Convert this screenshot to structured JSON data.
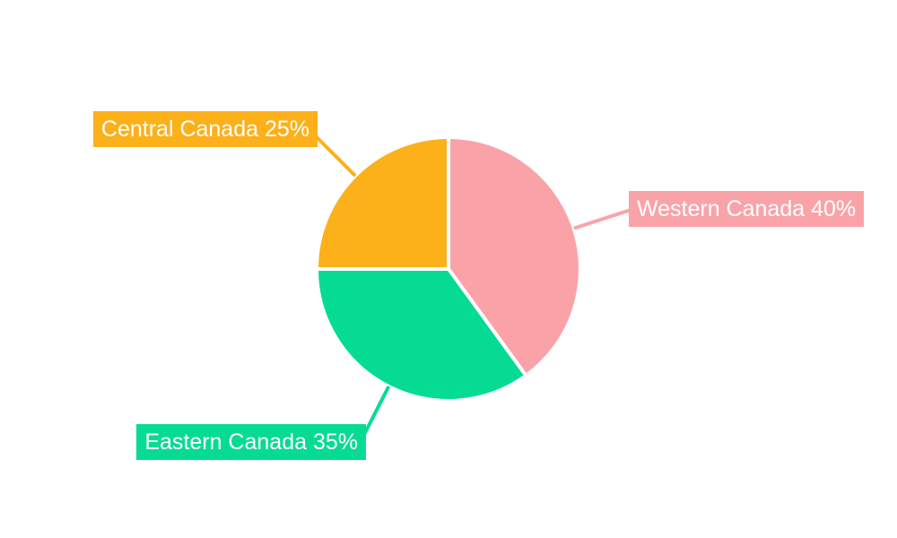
{
  "chart_data": {
    "type": "pie",
    "title": "",
    "legend": "none",
    "background_color": "#FFFFFF",
    "label_text_color": "#FFFFFF",
    "total": 100,
    "unit": "%",
    "series": [
      {
        "name": "Western Canada",
        "value": 40,
        "percent": "40%",
        "label": "Western Canada 40%",
        "color": "#F9A3A9"
      },
      {
        "name": "Eastern Canada",
        "value": 35,
        "percent": "35%",
        "label": "Eastern Canada 35%",
        "color": "#06DB94"
      },
      {
        "name": "Central Canada",
        "value": 25,
        "percent": "25%",
        "label": "Central Canada 25%",
        "color": "#FCB01A"
      }
    ]
  }
}
